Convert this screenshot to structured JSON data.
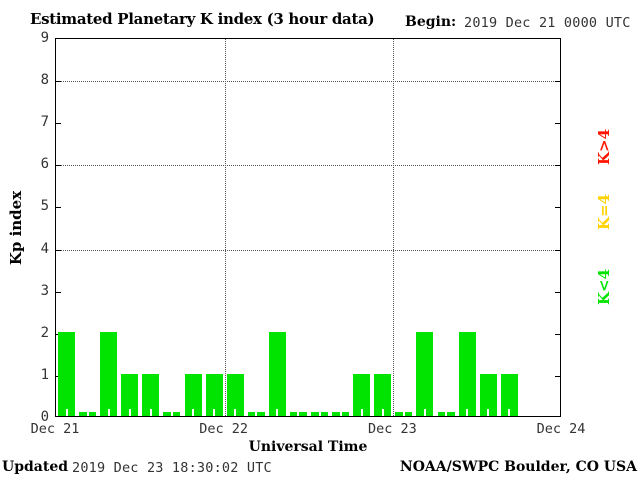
{
  "title": "Estimated Planetary K index (3 hour data)",
  "begin": {
    "label": "Begin:",
    "value": "2019 Dec 21 0000 UTC"
  },
  "footer": {
    "updated_label": "Updated",
    "updated_value": "2019 Dec 23 18:30:02 UTC",
    "credit": "NOAA/SWPC Boulder, CO USA"
  },
  "chart_data": {
    "type": "bar",
    "title": "Estimated Planetary K index (3 hour data)",
    "xlabel": "Universal Time",
    "ylabel": "Kp index",
    "ylim": [
      0,
      9
    ],
    "y_ticks": [
      0,
      1,
      2,
      3,
      4,
      5,
      6,
      7,
      8,
      9
    ],
    "grid_y_dotted": [
      4,
      6,
      8
    ],
    "period_hours": 3,
    "slots_per_day": 8,
    "x_axis_day_labels": [
      "Dec 21",
      "Dec 22",
      "Dec 23",
      "Dec 24"
    ],
    "days": [
      {
        "date": "Dec 21",
        "values": [
          2,
          0,
          2,
          1,
          1,
          0,
          1,
          1
        ]
      },
      {
        "date": "Dec 22",
        "values": [
          1,
          0,
          2,
          0,
          0,
          0,
          1,
          1
        ]
      },
      {
        "date": "Dec 23",
        "values": [
          0,
          2,
          0,
          2,
          1,
          1
        ]
      }
    ],
    "bar_color": "#00e400",
    "legend": [
      {
        "label": "K>4",
        "color": "#ff1400"
      },
      {
        "label": "K=4",
        "color": "#ffd300"
      },
      {
        "label": "K<4",
        "color": "#00e400"
      }
    ],
    "legend_position": "right-margin-rotated"
  }
}
